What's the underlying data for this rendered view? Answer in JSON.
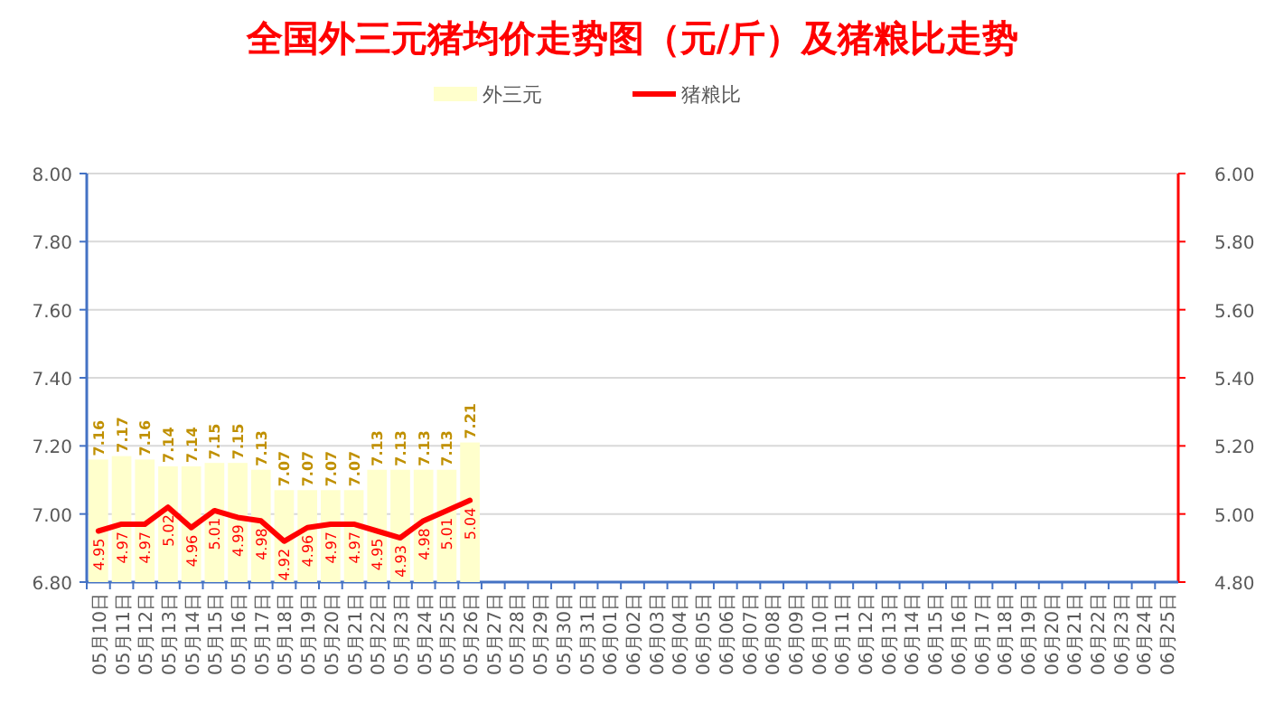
{
  "chart_data": {
    "type": "bar",
    "title": "全国外三元猪均价走势图（元/斤）及猪粮比走势",
    "categories": [
      "05月10日",
      "05月11日",
      "05月12日",
      "05月13日",
      "05月14日",
      "05月15日",
      "05月16日",
      "05月17日",
      "05月18日",
      "05月19日",
      "05月20日",
      "05月21日",
      "05月22日",
      "05月23日",
      "05月24日",
      "05月25日",
      "05月26日",
      "05月27日",
      "05月28日",
      "05月29日",
      "05月30日",
      "05月31日",
      "06月01日",
      "06月02日",
      "06月03日",
      "06月04日",
      "06月05日",
      "06月06日",
      "06月07日",
      "06月08日",
      "06月09日",
      "06月10日",
      "06月11日",
      "06月12日",
      "06月13日",
      "06月14日",
      "06月15日",
      "06月16日",
      "06月17日",
      "06月18日",
      "06月19日",
      "06月20日",
      "06月21日",
      "06月22日",
      "06月23日",
      "06月24日",
      "06月25日"
    ],
    "series": [
      {
        "name": "外三元",
        "color": "#ffffcc",
        "values": [
          7.16,
          7.17,
          7.16,
          7.14,
          7.14,
          7.15,
          7.15,
          7.13,
          7.07,
          7.07,
          7.07,
          7.07,
          7.13,
          7.13,
          7.13,
          7.13,
          7.21,
          null,
          null,
          null,
          null,
          null,
          null,
          null,
          null,
          null,
          null,
          null,
          null,
          null,
          null,
          null,
          null,
          null,
          null,
          null,
          null,
          null,
          null,
          null,
          null,
          null,
          null,
          null,
          null,
          null,
          null
        ]
      },
      {
        "name": "猪粮比",
        "type": "line",
        "axis": "y2",
        "color": "#ff0000",
        "values": [
          4.95,
          4.97,
          4.97,
          5.02,
          4.96,
          5.01,
          4.99,
          4.98,
          4.92,
          4.96,
          4.97,
          4.97,
          4.95,
          4.93,
          4.98,
          5.01,
          5.04,
          null,
          null,
          null,
          null,
          null,
          null,
          null,
          null,
          null,
          null,
          null,
          null,
          null,
          null,
          null,
          null,
          null,
          null,
          null,
          null,
          null,
          null,
          null,
          null,
          null,
          null,
          null,
          null,
          null,
          null
        ]
      }
    ],
    "ylim": [
      6.8,
      8.0
    ],
    "yticks": [
      {
        "value": 6.8,
        "label": "6.80"
      },
      {
        "value": 7.0,
        "label": "7.00"
      },
      {
        "value": 7.2,
        "label": "7.20"
      },
      {
        "value": 7.4,
        "label": "7.40"
      },
      {
        "value": 7.6,
        "label": "7.60"
      },
      {
        "value": 7.8,
        "label": "7.80"
      },
      {
        "value": 8.0,
        "label": "8.00"
      }
    ],
    "y2lim": [
      4.8,
      6.0
    ],
    "y2ticks": [
      {
        "value": 4.8,
        "label": "4.80"
      },
      {
        "value": 5.0,
        "label": "5.00"
      },
      {
        "value": 5.2,
        "label": "5.20"
      },
      {
        "value": 5.4,
        "label": "5.40"
      },
      {
        "value": 5.6,
        "label": "5.60"
      },
      {
        "value": 5.8,
        "label": "5.80"
      },
      {
        "value": 6.0,
        "label": "6.00"
      }
    ],
    "grid": "y",
    "legend": "top",
    "data_labels": true,
    "marker": "none",
    "line_style": "solid"
  }
}
